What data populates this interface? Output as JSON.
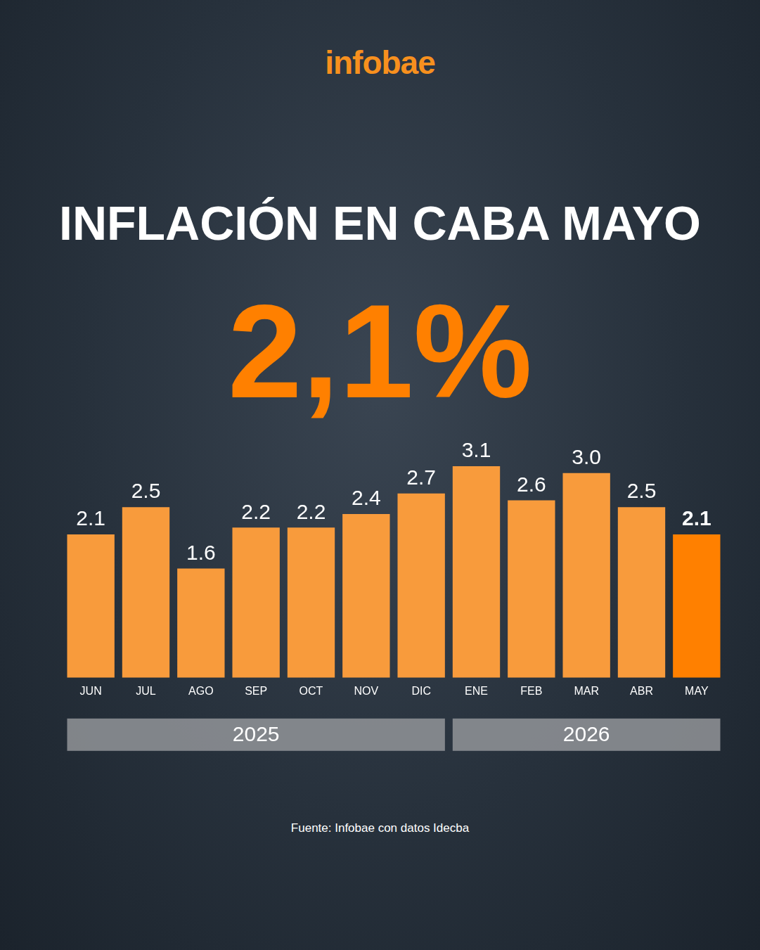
{
  "logo": "infobae",
  "chart_data": {
    "type": "bar",
    "title": "INFLACIÓN EN CABA MAYO",
    "subtitle": "2,1%",
    "source": "Fuente: Infobae con datos Idecba",
    "categories": [
      "JUN",
      "JUL",
      "AGO",
      "SEP",
      "OCT",
      "NOV",
      "DIC",
      "ENE",
      "FEB",
      "MAR",
      "ABR",
      "MAY"
    ],
    "values": [
      2.1,
      2.5,
      1.6,
      2.2,
      2.2,
      2.4,
      2.7,
      3.1,
      2.6,
      3.0,
      2.5,
      2.1
    ],
    "value_labels": [
      "2.1",
      "2.5",
      "1.6",
      "2.2",
      "2.2",
      "2.4",
      "2.7",
      "3.1",
      "2.6",
      "3.0",
      "2.5",
      "2.1"
    ],
    "colors": [
      "#f89b3c",
      "#f89b3c",
      "#f89b3c",
      "#f89b3c",
      "#f89b3c",
      "#f89b3c",
      "#f89b3c",
      "#f89b3c",
      "#f89b3c",
      "#f89b3c",
      "#f89b3c",
      "#ff8000"
    ],
    "year_groups": [
      {
        "label": "2025",
        "from": "JUN",
        "to": "DIC"
      },
      {
        "label": "2026",
        "from": "ENE",
        "to": "MAY"
      }
    ],
    "ylim": [
      0,
      3.1
    ],
    "grid": false,
    "data_labels": true,
    "tick_labels": "x"
  }
}
